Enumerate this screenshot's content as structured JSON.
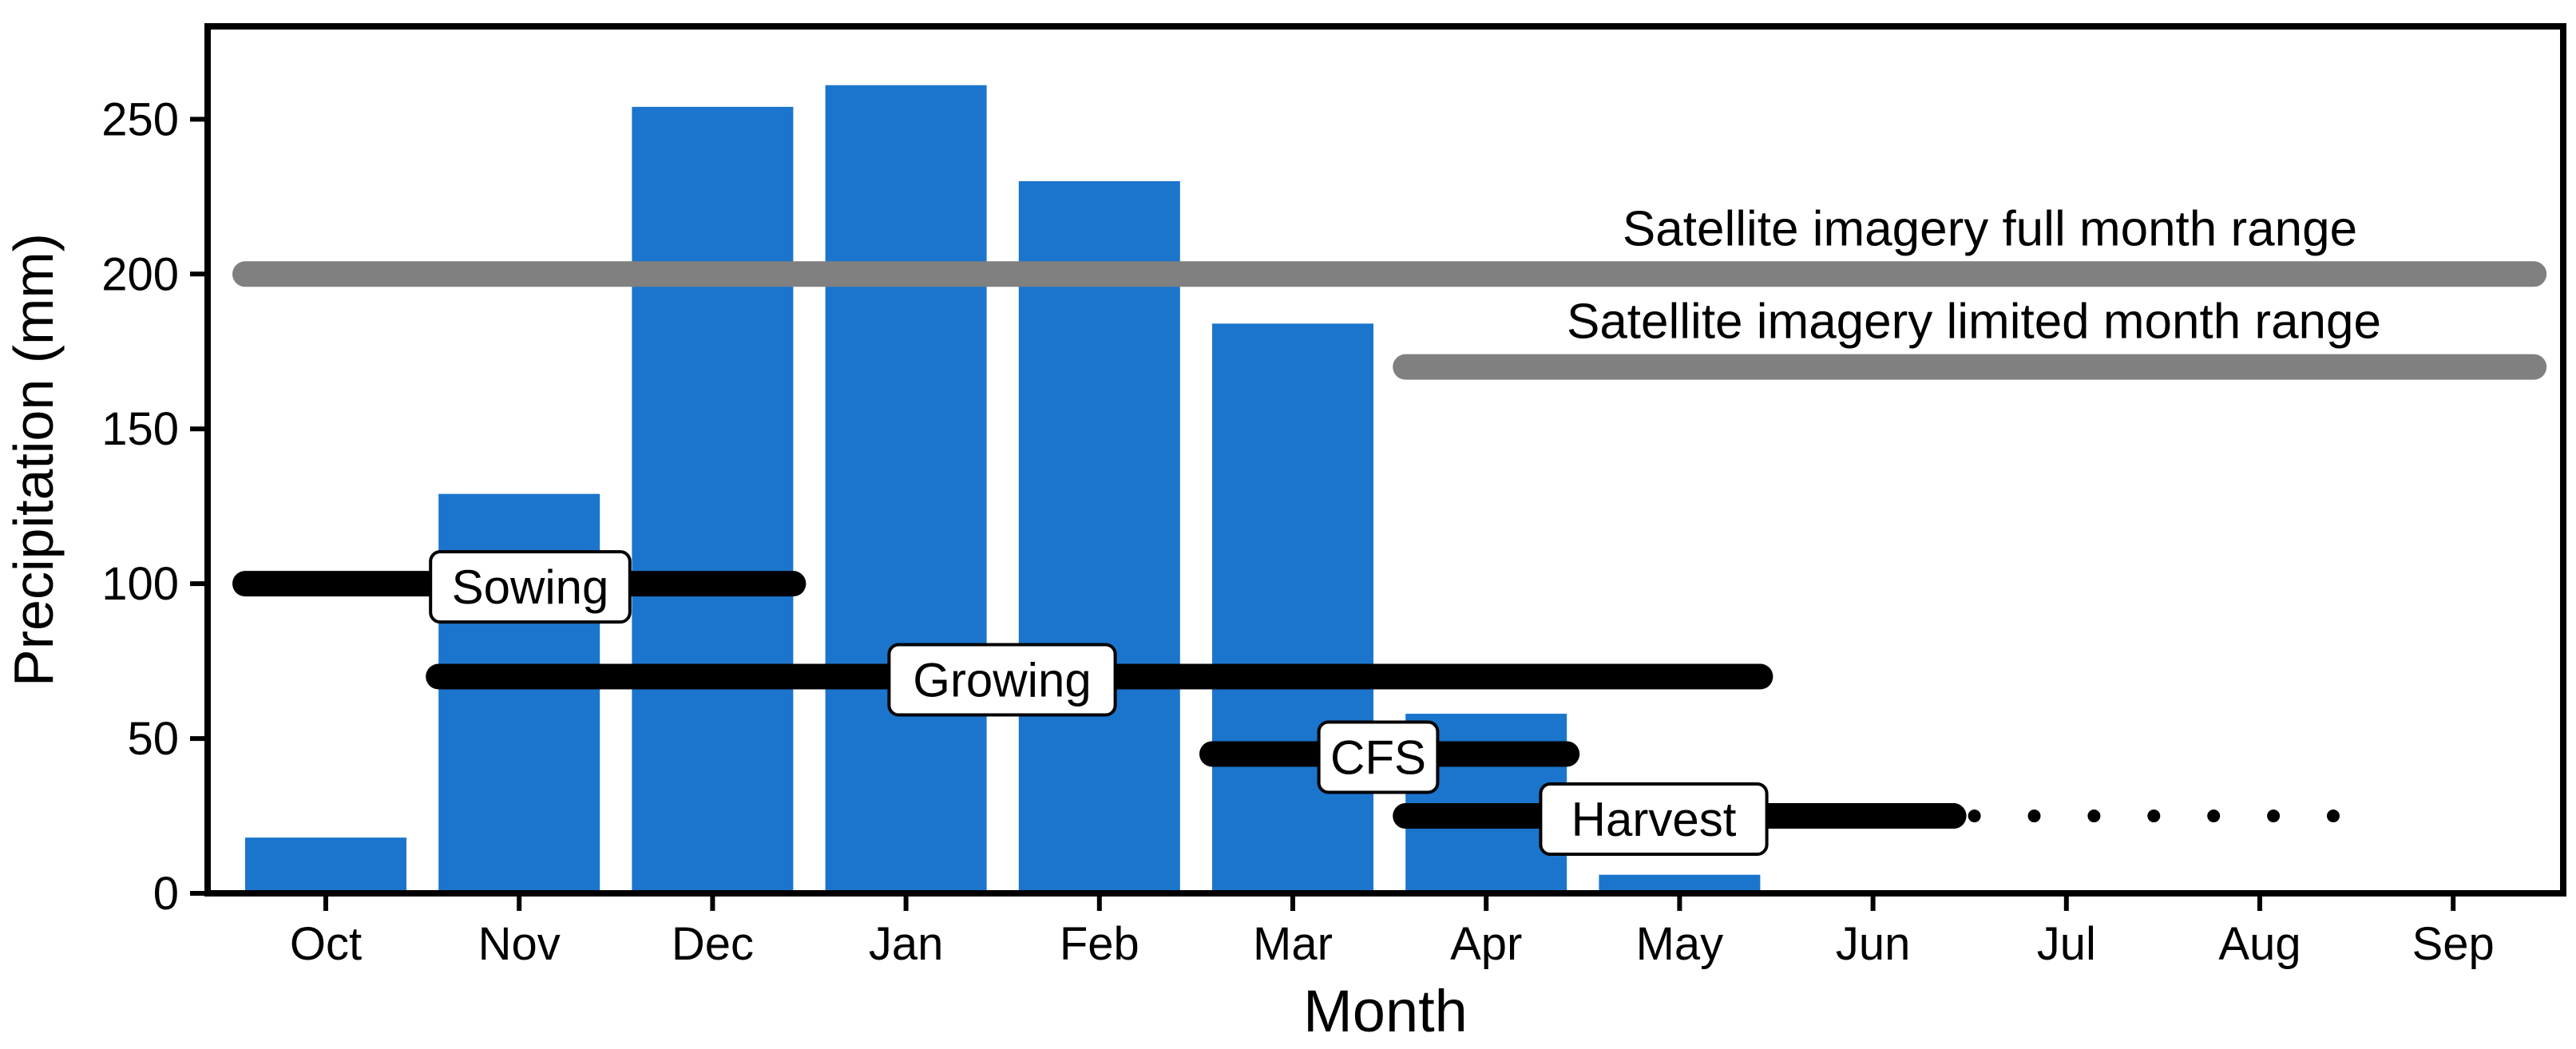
{
  "chart_data": {
    "type": "bar",
    "xlabel": "Month",
    "ylabel": "Precipitation (mm)",
    "ylim": [
      0,
      280
    ],
    "yticks": [
      0,
      50,
      100,
      150,
      200,
      250
    ],
    "categories": [
      "Oct",
      "Nov",
      "Dec",
      "Jan",
      "Feb",
      "Mar",
      "Apr",
      "May",
      "Jun",
      "Jul",
      "Aug",
      "Sep"
    ],
    "values": [
      18,
      129,
      254,
      261,
      230,
      184,
      58,
      6,
      0,
      0,
      0,
      1
    ],
    "colors": {
      "bar": "#1b75cd",
      "satellite_line": "#808080",
      "phase_line": "#000000",
      "frame": "#000000"
    },
    "satellite_ranges": [
      {
        "label": "Satellite imagery full month range",
        "y": 200,
        "start": "Oct",
        "end": "Sep"
      },
      {
        "label": "Satellite imagery limited month range",
        "y": 170,
        "start": "Apr",
        "end": "Sep"
      }
    ],
    "phases": [
      {
        "label": "Sowing",
        "y": 100,
        "start": "Oct",
        "end": "Dec"
      },
      {
        "label": "Growing",
        "y": 70,
        "start": "Nov",
        "end": "May"
      },
      {
        "label": "CFS",
        "y": 45,
        "start": "Mar",
        "end": "Apr"
      },
      {
        "label": "Harvest",
        "y": 25,
        "start": "Apr",
        "end": "Jun",
        "dotted_extension_end": "Aug"
      }
    ]
  }
}
